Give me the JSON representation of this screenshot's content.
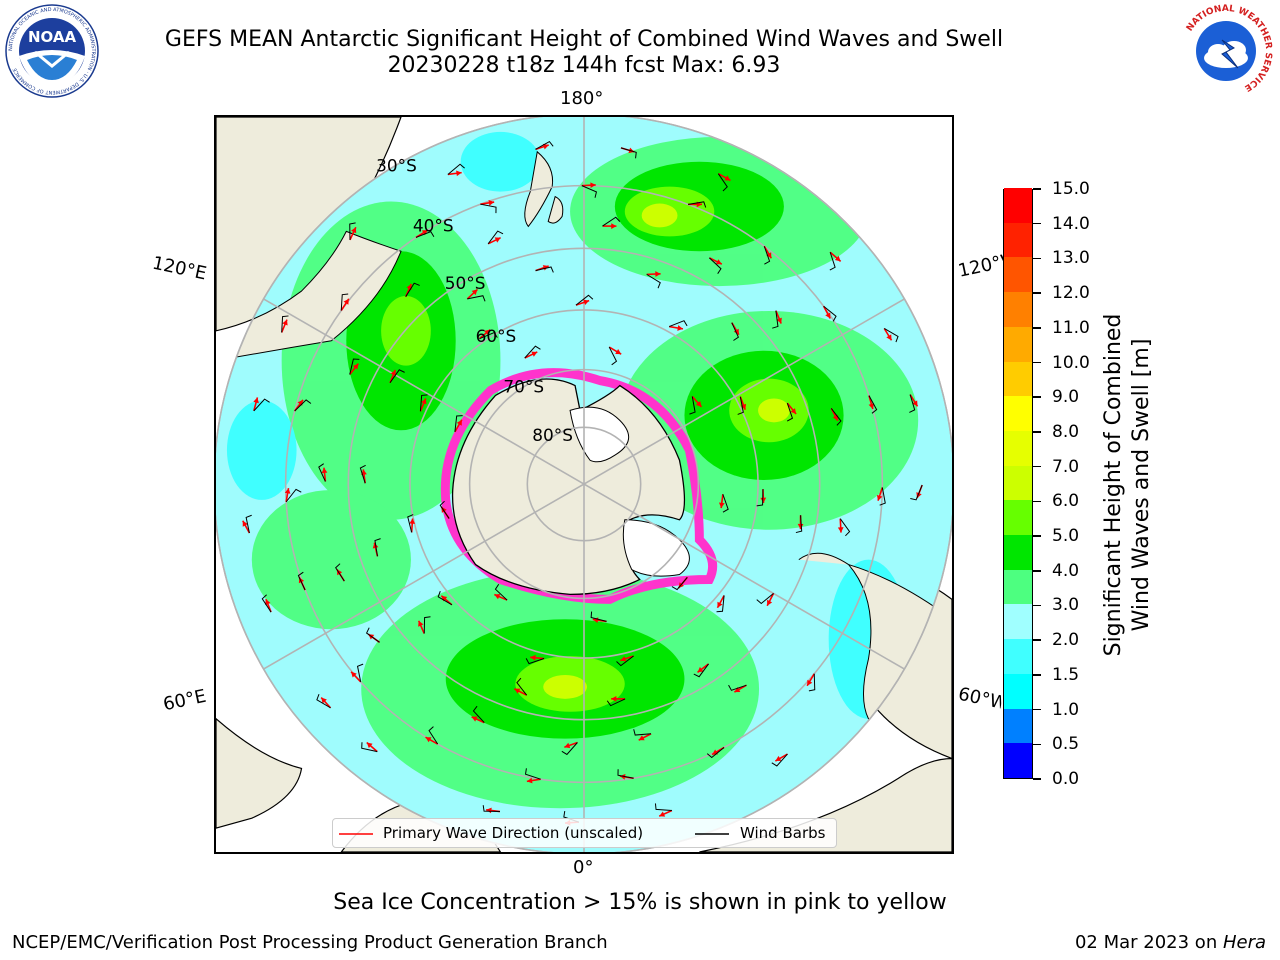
{
  "header": {
    "title_line1": "GEFS MEAN Antarctic Significant Height of Combined Wind Waves and Swell",
    "title_line2": "20230228 t18z 144h fcst   Max: 6.93"
  },
  "logos": {
    "noaa_text": "NOAA",
    "noaa_ring_text": "NATIONAL OCEANIC AND ATMOSPHERIC ADMINISTRATION · U.S. DEPARTMENT OF COMMERCE",
    "nws_ring_text": "NATIONAL WEATHER SERVICE"
  },
  "map": {
    "projection": "south-polar-stereographic",
    "longitude_labels": {
      "top": "180°",
      "bottom": "0°",
      "upper_left": "120°E",
      "lower_left": "60°E",
      "upper_right": "120°W",
      "lower_right": "60°W"
    },
    "latitude_labels": [
      "30°S",
      "40°S",
      "50°S",
      "60°S",
      "70°S",
      "80°S"
    ],
    "colors": {
      "land": "#eeecdc",
      "ocean_low": "#9ffcfd",
      "ice_edge": "#ff33cc",
      "graticule": "#b3b3b3",
      "arrow": "#ff0000",
      "barb": "#000000"
    }
  },
  "colorbar": {
    "label_line1": "Significant Height of Combined",
    "label_line2": "Wind Waves and Swell [m]",
    "levels": [
      "0.0",
      "0.5",
      "1.0",
      "1.5",
      "2.0",
      "3.0",
      "4.0",
      "5.0",
      "6.0",
      "7.0",
      "8.0",
      "9.0",
      "10.0",
      "11.0",
      "12.0",
      "13.0",
      "14.0",
      "15.0"
    ],
    "colors": [
      "#0000ff",
      "#0080ff",
      "#00ffff",
      "#40ffff",
      "#a0ffff",
      "#4dff80",
      "#00e600",
      "#66ff00",
      "#ccff00",
      "#e6ff00",
      "#ffff00",
      "#ffcc00",
      "#ffaa00",
      "#ff8000",
      "#ff5500",
      "#ff2200",
      "#ff0000"
    ]
  },
  "legend": {
    "wave_direction": "Primary Wave Direction (unscaled)",
    "wind_barbs": "Wind Barbs"
  },
  "footer": {
    "note": "Sea Ice Concentration > 15% is shown in pink to yellow",
    "credit": "NCEP/EMC/Verification Post Processing Product Generation Branch",
    "date_prefix": "02 Mar 2023 on ",
    "host": "Hera"
  }
}
